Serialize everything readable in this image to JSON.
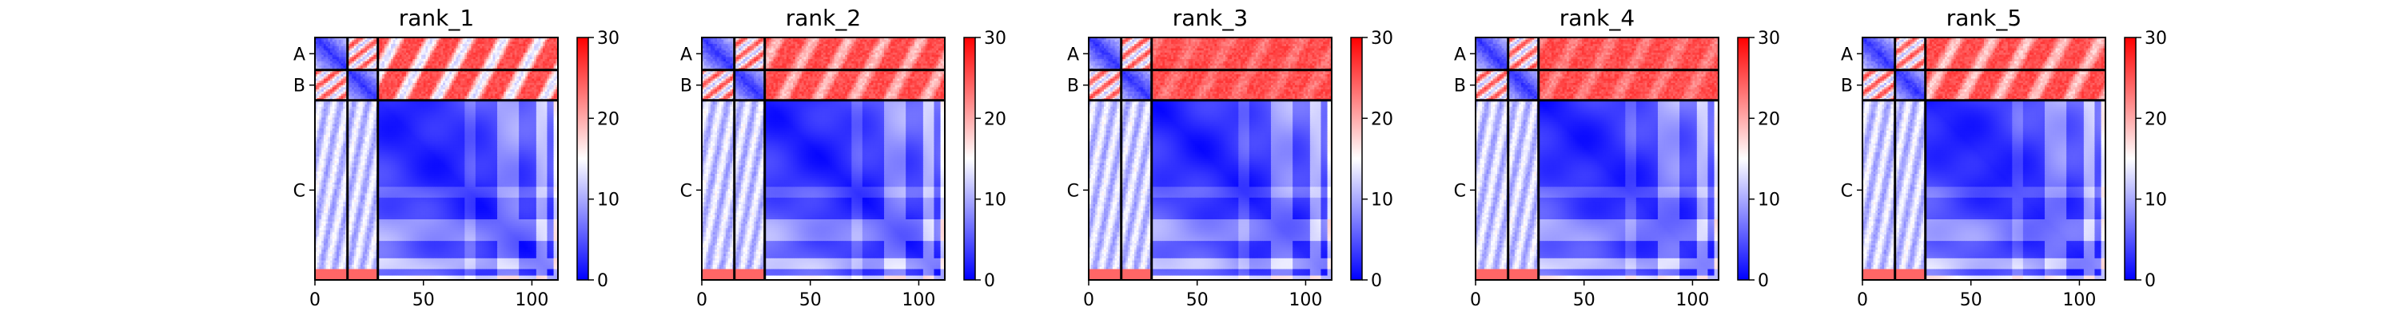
{
  "chart_data": {
    "type": "heatmap",
    "colormap": {
      "low": "#0000ff",
      "mid": "#ffffff",
      "high": "#ff0000"
    },
    "color_range": [
      0,
      30
    ],
    "colorbar_ticks": [
      "0",
      "10",
      "20",
      "30"
    ],
    "x_range": [
      0,
      112
    ],
    "x_ticks": [
      {
        "value": 0,
        "label": "0"
      },
      {
        "value": 50,
        "label": "50"
      },
      {
        "value": 100,
        "label": "100"
      }
    ],
    "chain_boundaries": [
      15,
      29
    ],
    "chains": [
      {
        "label": "A",
        "start": 0,
        "end": 15
      },
      {
        "label": "B",
        "start": 15,
        "end": 29
      },
      {
        "label": "C",
        "start": 29,
        "end": 112
      }
    ],
    "panels": [
      {
        "title": "rank_1"
      },
      {
        "title": "rank_2"
      },
      {
        "title": "rank_3"
      },
      {
        "title": "rank_4"
      },
      {
        "title": "rank_5"
      }
    ]
  }
}
